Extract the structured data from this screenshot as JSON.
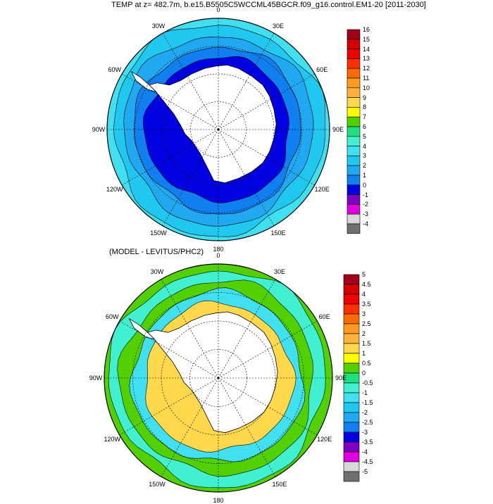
{
  "panel1": {
    "title": "TEMP at z= 482.7m, b.e15.B5505C5WCCML45BGCR.f09_g16.control.EM1-20 [2011-2030]",
    "lon_labels": [
      "0",
      "30E",
      "60E",
      "90E",
      "120E",
      "150E",
      "180",
      "150W",
      "120W",
      "90W",
      "60W",
      "30W"
    ],
    "colorbar": {
      "labels": [
        "16",
        "15",
        "14",
        "13",
        "12",
        "11",
        "10",
        "9",
        "8",
        "7",
        "6",
        "5",
        "4",
        "3",
        "2",
        "1",
        "0",
        "-1",
        "-2",
        "-3",
        "-4"
      ],
      "colors": [
        "#a0001c",
        "#d40000",
        "#f00000",
        "#ff3000",
        "#ff6a00",
        "#ff9a20",
        "#ffb23a",
        "#ffd84c",
        "#ffff00",
        "#52d000",
        "#20e080",
        "#40f0d0",
        "#40e0f0",
        "#20c8f0",
        "#20a8f0",
        "#1080f0",
        "#0000e0",
        "#8000c0",
        "#e000e0",
        "#d8d8d8",
        "#707070"
      ]
    }
  },
  "panel2": {
    "title": "(MODEL - LEVITUS/PHC2)",
    "lon_labels": [
      "0",
      "30E",
      "60E",
      "90E",
      "120E",
      "150E",
      "180",
      "150W",
      "120W",
      "90W",
      "60W",
      "30W"
    ],
    "colorbar": {
      "labels": [
        "5",
        "4.5",
        "4",
        "3.5",
        "3",
        "2.5",
        "2",
        "1.5",
        "1",
        "0.5",
        "0",
        "-0.5",
        "-1",
        "-1.5",
        "-2",
        "-2.5",
        "-3",
        "-3.5",
        "-4",
        "-4.5",
        "-5"
      ],
      "colors": [
        "#a0001c",
        "#d40000",
        "#f00000",
        "#ff3000",
        "#ff6a00",
        "#ff9a20",
        "#ffb23a",
        "#ffd84c",
        "#ffff00",
        "#52d000",
        "#20e080",
        "#40f0d0",
        "#40e0f0",
        "#20c8f0",
        "#20a8f0",
        "#1080f0",
        "#0000e0",
        "#8000c0",
        "#e000e0",
        "#d8d8d8",
        "#707070"
      ]
    }
  }
}
